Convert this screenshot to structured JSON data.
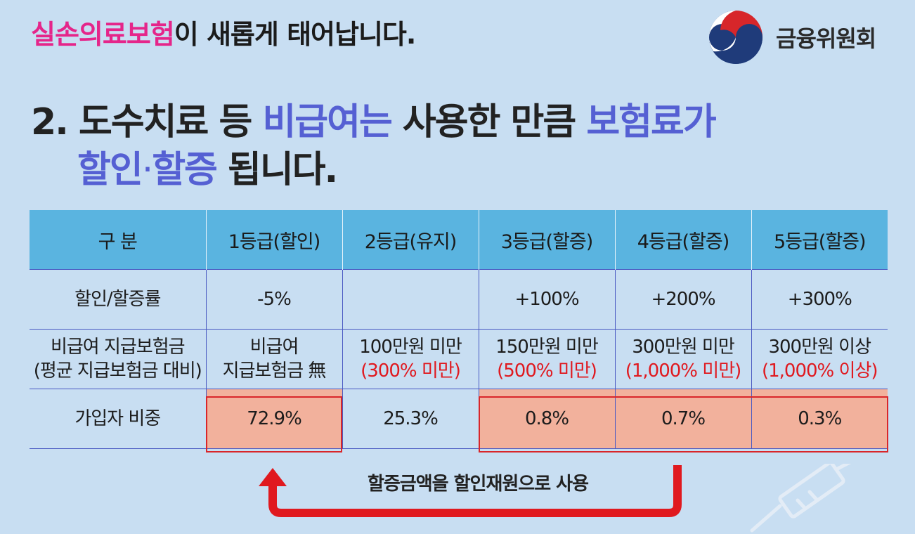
{
  "header": {
    "title_highlight": "실손의료보험",
    "title_rest": "이 새롭게 태어납니다.",
    "org_name": "금융위원회",
    "logo_icon": "taegeuk-logo-icon"
  },
  "headline": {
    "prefix": "2. 도수치료 등 ",
    "hl1": "비급여는",
    "mid": " 사용한 만큼 ",
    "hl2": "보험료가",
    "hl3": "할인",
    "dot": "·",
    "hl4": "할증",
    "suffix": " 됩니다."
  },
  "table": {
    "headers": [
      "구 분",
      "1등급(할인)",
      "2등급(유지)",
      "3등급(할증)",
      "4등급(할증)",
      "5등급(할증)"
    ],
    "rate_row": {
      "label": "할인/할증률",
      "values": [
        "-5%",
        "",
        "+100%",
        "+200%",
        "+300%"
      ]
    },
    "benefit_row": {
      "label_line1": "비급여 지급보험금",
      "label_line2": "(평균 지급보험금 대비)",
      "cells": [
        {
          "line1": "비급여",
          "line2": "지급보험금 無",
          "line2_red": false
        },
        {
          "line1": "100만원 미만",
          "line2": "(300% 미만)",
          "line2_red": true
        },
        {
          "line1": "150만원 미만",
          "line2": "(500% 미만)",
          "line2_red": true
        },
        {
          "line1": "300만원 미만",
          "line2": "(1,000% 미만)",
          "line2_red": true
        },
        {
          "line1": "300만원 이상",
          "line2": "(1,000% 이상)",
          "line2_red": true
        }
      ]
    },
    "share_row": {
      "label": "가입자 비중",
      "values": [
        "72.9%",
        "25.3%",
        "0.8%",
        "0.7%",
        "0.3%"
      ]
    }
  },
  "arrow": {
    "label": "할증금액을 할인재원으로 사용",
    "icon": "u-turn-arrow-icon"
  },
  "colors": {
    "background": "#c8def2",
    "header_bg": "#5ab4e0",
    "pink": "#e5258a",
    "purple": "#5560d3",
    "red": "#e0191f",
    "shade": "#f2b19c"
  }
}
